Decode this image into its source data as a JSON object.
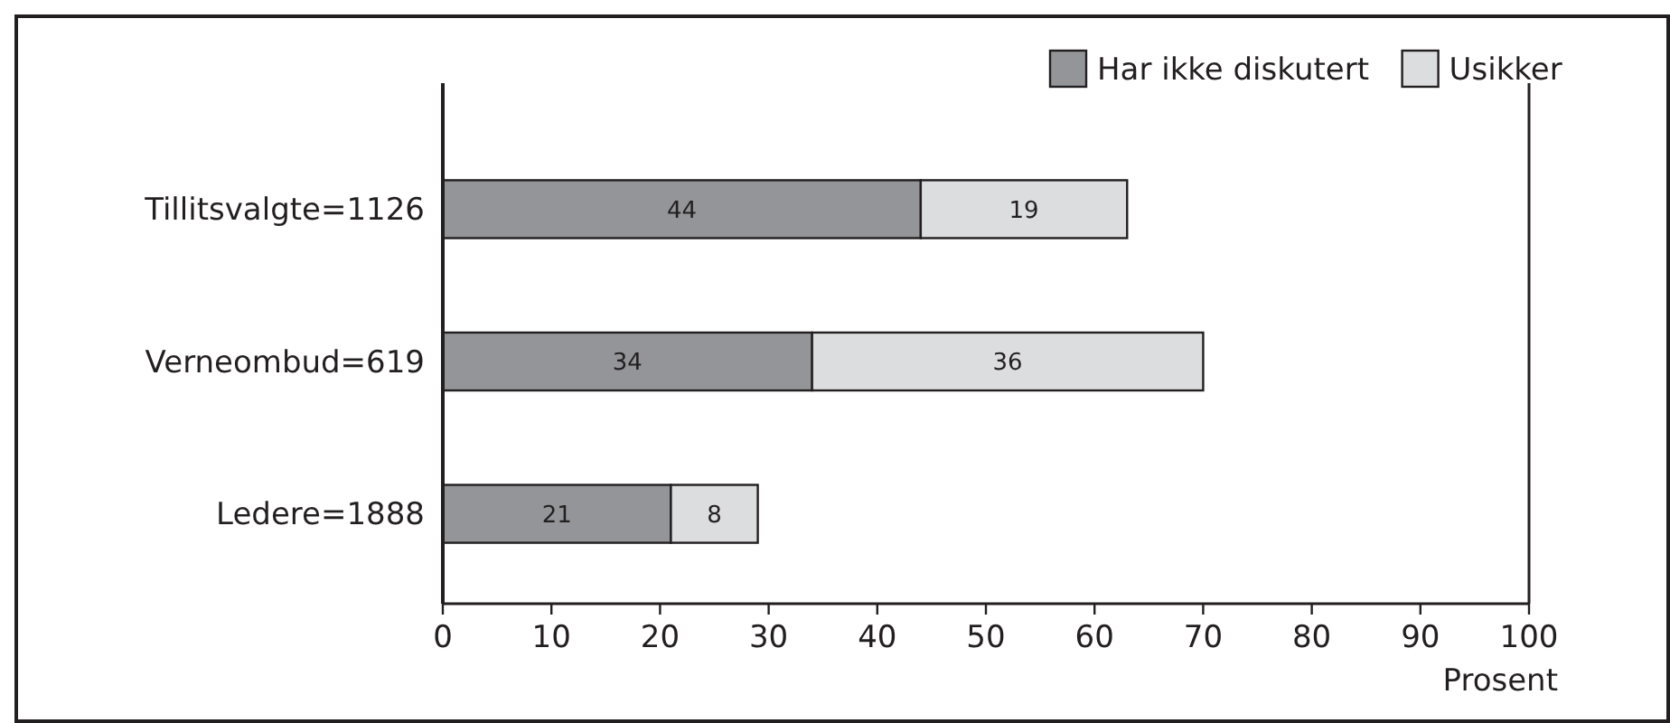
{
  "chart_data": {
    "type": "bar",
    "orientation": "horizontal",
    "stacked": true,
    "xlabel": "Prosent",
    "categories": [
      "Tillitsvalgte=1126",
      "Verneombud=619",
      "Ledere=1888"
    ],
    "series": [
      {
        "name": "Har ikke diskutert",
        "color": "#939598",
        "values": [
          44,
          34,
          21
        ]
      },
      {
        "name": "Usikker",
        "color": "#dcdddf",
        "values": [
          19,
          36,
          8
        ]
      }
    ],
    "xlim": [
      0,
      100
    ],
    "xticks": [
      0,
      10,
      20,
      30,
      40,
      50,
      60,
      70,
      80,
      90,
      100
    ],
    "data_labels": true,
    "legend": "top right",
    "grid": false
  }
}
